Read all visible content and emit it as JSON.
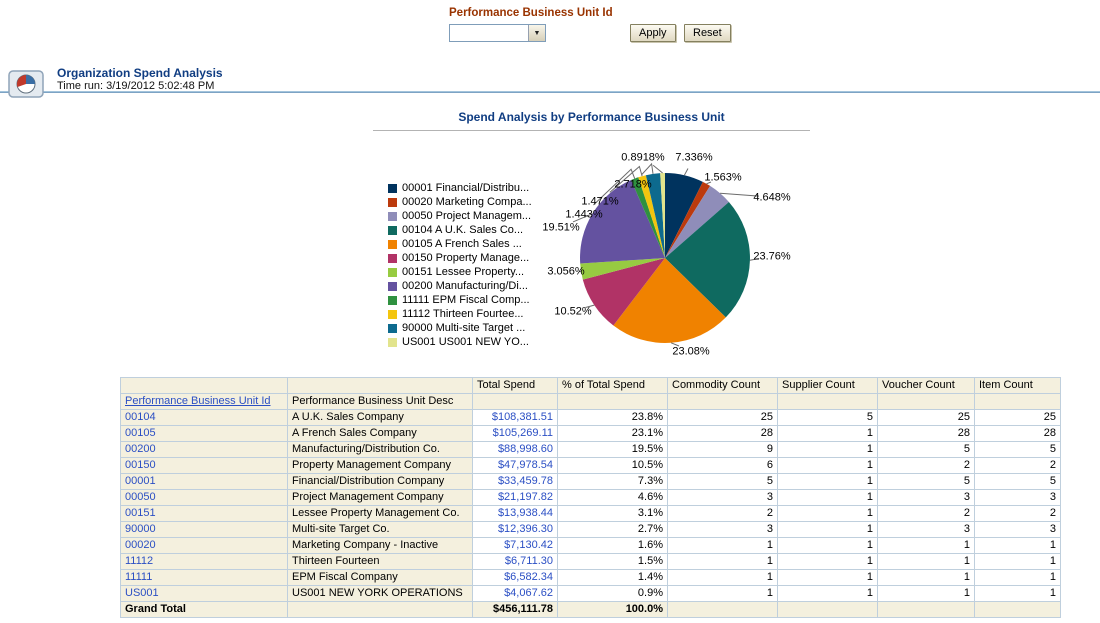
{
  "filter": {
    "label": "Performance Business Unit Id",
    "dropdown_value": "",
    "apply": "Apply",
    "reset": "Reset"
  },
  "report": {
    "title": "Organization Spend Analysis",
    "time_run": "Time run: 3/19/2012 5:02:48 PM"
  },
  "chart_data": {
    "type": "pie",
    "title": "Spend Analysis by Performance Business Unit",
    "legend_position": "left",
    "start_angle_deg": -90,
    "direction": "clockwise",
    "slices": [
      {
        "id": "00001",
        "legend": "00001 Financial/Distribu...",
        "pct_label": "7.336%",
        "value": 7.336,
        "color": "#00335E"
      },
      {
        "id": "00020",
        "legend": "00020 Marketing Compa...",
        "pct_label": "1.563%",
        "value": 1.563,
        "color": "#BC3A0D"
      },
      {
        "id": "00050",
        "legend": "00050 Project Managem...",
        "pct_label": "4.648%",
        "value": 4.648,
        "color": "#8F8DB9"
      },
      {
        "id": "00104",
        "legend": "00104 A U.K. Sales Co...",
        "pct_label": "23.76%",
        "value": 23.76,
        "color": "#0F6A60"
      },
      {
        "id": "00105",
        "legend": "00105 A French Sales ...",
        "pct_label": "23.08%",
        "value": 23.08,
        "color": "#F08200"
      },
      {
        "id": "00150",
        "legend": "00150 Property Manage...",
        "pct_label": "10.52%",
        "value": 10.52,
        "color": "#B13366"
      },
      {
        "id": "00151",
        "legend": "00151 Lessee Property...",
        "pct_label": "3.056%",
        "value": 3.056,
        "color": "#97CB41"
      },
      {
        "id": "00200",
        "legend": "00200 Manufacturing/Di...",
        "pct_label": "19.51%",
        "value": 19.51,
        "color": "#6452A0"
      },
      {
        "id": "11111",
        "legend": "11111 EPM Fiscal Comp...",
        "pct_label": "1.443%",
        "value": 1.443,
        "color": "#2F9140"
      },
      {
        "id": "11112",
        "legend": "11112 Thirteen Fourtee...",
        "pct_label": "1.471%",
        "value": 1.471,
        "color": "#F3C50F"
      },
      {
        "id": "90000",
        "legend": "90000 Multi-site Target ...",
        "pct_label": "2.718%",
        "value": 2.718,
        "color": "#0D6A8E"
      },
      {
        "id": "US001",
        "legend": "US001 US001 NEW YO...",
        "pct_label": "0.8918%",
        "value": 0.8918,
        "color": "#E2E48D"
      }
    ]
  },
  "table": {
    "col_headers": [
      "",
      "",
      "Total Spend",
      "% of Total Spend",
      "Commodity Count",
      "Supplier Count",
      "Voucher Count",
      "Item Count"
    ],
    "subheaders": [
      "Performance Business Unit Id",
      "Performance Business Unit Desc"
    ],
    "rows": [
      {
        "id": "00104",
        "desc": "A U.K. Sales Company",
        "total_spend": "$108,381.51",
        "pct": "23.8%",
        "commodity": "25",
        "supplier": "5",
        "voucher": "25",
        "item": "25"
      },
      {
        "id": "00105",
        "desc": "A French Sales Company",
        "total_spend": "$105,269.11",
        "pct": "23.1%",
        "commodity": "28",
        "supplier": "1",
        "voucher": "28",
        "item": "28"
      },
      {
        "id": "00200",
        "desc": "Manufacturing/Distribution Co.",
        "total_spend": "$88,998.60",
        "pct": "19.5%",
        "commodity": "9",
        "supplier": "1",
        "voucher": "5",
        "item": "5"
      },
      {
        "id": "00150",
        "desc": "Property Management Company",
        "total_spend": "$47,978.54",
        "pct": "10.5%",
        "commodity": "6",
        "supplier": "1",
        "voucher": "2",
        "item": "2"
      },
      {
        "id": "00001",
        "desc": "Financial/Distribution Company",
        "total_spend": "$33,459.78",
        "pct": "7.3%",
        "commodity": "5",
        "supplier": "1",
        "voucher": "5",
        "item": "5"
      },
      {
        "id": "00050",
        "desc": "Project Management Company",
        "total_spend": "$21,197.82",
        "pct": "4.6%",
        "commodity": "3",
        "supplier": "1",
        "voucher": "3",
        "item": "3"
      },
      {
        "id": "00151",
        "desc": "Lessee Property Management Co.",
        "total_spend": "$13,938.44",
        "pct": "3.1%",
        "commodity": "2",
        "supplier": "1",
        "voucher": "2",
        "item": "2"
      },
      {
        "id": "90000",
        "desc": "Multi-site Target Co.",
        "total_spend": "$12,396.30",
        "pct": "2.7%",
        "commodity": "3",
        "supplier": "1",
        "voucher": "3",
        "item": "3"
      },
      {
        "id": "00020",
        "desc": "Marketing Company - Inactive",
        "total_spend": "$7,130.42",
        "pct": "1.6%",
        "commodity": "1",
        "supplier": "1",
        "voucher": "1",
        "item": "1"
      },
      {
        "id": "11112",
        "desc": "Thirteen Fourteen",
        "total_spend": "$6,711.30",
        "pct": "1.5%",
        "commodity": "1",
        "supplier": "1",
        "voucher": "1",
        "item": "1"
      },
      {
        "id": "11111",
        "desc": "EPM Fiscal Company",
        "total_spend": "$6,582.34",
        "pct": "1.4%",
        "commodity": "1",
        "supplier": "1",
        "voucher": "1",
        "item": "1"
      },
      {
        "id": "US001",
        "desc": "US001 NEW YORK OPERATIONS",
        "total_spend": "$4,067.62",
        "pct": "0.9%",
        "commodity": "1",
        "supplier": "1",
        "voucher": "1",
        "item": "1"
      }
    ],
    "grand_total": {
      "label": "Grand Total",
      "total_spend": "$456,111.78",
      "pct": "100.0%"
    }
  }
}
